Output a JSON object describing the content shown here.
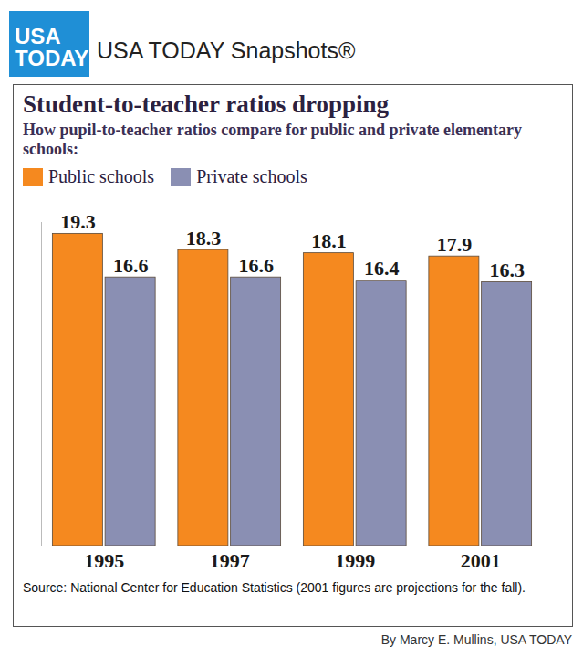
{
  "header": {
    "logo": "USA TODAY",
    "title": "USA TODAY Snapshots®"
  },
  "chart_data": {
    "type": "bar",
    "title": "Student-to-teacher ratios dropping",
    "subtitle": "How pupil-to-teacher ratios compare for public and private elementary schools:",
    "categories": [
      "1995",
      "1997",
      "1999",
      "2001"
    ],
    "series": [
      {
        "name": "Public schools",
        "color": "#f5891f",
        "values": [
          19.3,
          18.3,
          18.1,
          17.9
        ]
      },
      {
        "name": "Private schools",
        "color": "#8a8fb3",
        "values": [
          16.6,
          16.6,
          16.4,
          16.3
        ]
      }
    ],
    "ylim": [
      0,
      20
    ],
    "tick_labels": "x",
    "data_labels": true,
    "legend": "top-left",
    "source": "Source: National Center for Education Statistics (2001 figures are projections for the fall)."
  },
  "credit": "By Marcy E. Mullins, USA TODAY"
}
